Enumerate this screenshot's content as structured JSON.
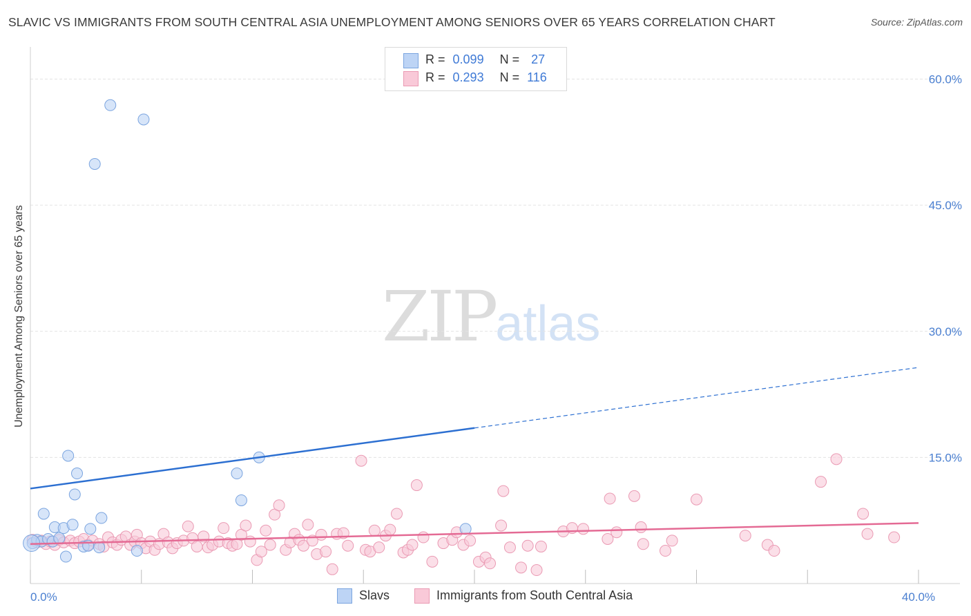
{
  "header": {
    "title": "SLAVIC VS IMMIGRANTS FROM SOUTH CENTRAL ASIA UNEMPLOYMENT AMONG SENIORS OVER 65 YEARS CORRELATION CHART",
    "source": "Source: ZipAtlas.com"
  },
  "watermark": {
    "zip": "ZIP",
    "atlas": "atlas"
  },
  "legend": {
    "r_label": "R =",
    "n_label": "N =",
    "series": [
      {
        "name": "Slavs",
        "r": "0.099",
        "n": "27",
        "fill": "#bdd4f5",
        "stroke": "#7aa4df"
      },
      {
        "name": "Immigrants from South Central Asia",
        "r": "0.293",
        "n": "116",
        "fill": "#f9c9d8",
        "stroke": "#ea9ab3"
      }
    ]
  },
  "colors": {
    "blue_line": "#2c6fd1",
    "pink_line": "#e46a94",
    "grid": "#e3e3e3",
    "axis_text": "#4a7fd0"
  },
  "chart_data": {
    "type": "scatter",
    "title": "SLAVIC VS IMMIGRANTS FROM SOUTH CENTRAL ASIA UNEMPLOYMENT AMONG SENIORS OVER 65 YEARS CORRELATION CHART",
    "xlabel": "",
    "ylabel": "Unemployment Among Seniors over 65 years",
    "xlim": [
      0,
      40
    ],
    "ylim": [
      0,
      63
    ],
    "x_tick_labels": [
      {
        "value": 0,
        "label": "0.0%"
      },
      {
        "value": 40,
        "label": "40.0%"
      }
    ],
    "y_ticks": [
      {
        "value": 15,
        "label": "15.0%"
      },
      {
        "value": 30,
        "label": "30.0%"
      },
      {
        "value": 45,
        "label": "45.0%"
      },
      {
        "value": 60,
        "label": "60.0%"
      }
    ],
    "grid": true,
    "series": [
      {
        "name": "Slavs",
        "r": 0.099,
        "n": 27,
        "trend": {
          "x0": 0,
          "y0": 11.3,
          "x1": 20,
          "y1": 18.5,
          "dash_to_x": 40,
          "dash_to_y": 25.7
        },
        "points": [
          [
            0.1,
            4.8
          ],
          [
            0.3,
            5.2
          ],
          [
            0.5,
            5.0
          ],
          [
            0.8,
            5.3
          ],
          [
            1.0,
            5.0
          ],
          [
            1.1,
            6.7
          ],
          [
            1.3,
            5.4
          ],
          [
            1.5,
            6.6
          ],
          [
            1.6,
            3.2
          ],
          [
            1.7,
            15.2
          ],
          [
            1.9,
            7.0
          ],
          [
            2.1,
            13.1
          ],
          [
            2.0,
            10.6
          ],
          [
            2.4,
            4.4
          ],
          [
            2.7,
            6.5
          ],
          [
            2.6,
            4.5
          ],
          [
            3.1,
            4.3
          ],
          [
            3.2,
            7.8
          ],
          [
            2.9,
            49.9
          ],
          [
            3.6,
            56.9
          ],
          [
            5.1,
            55.2
          ],
          [
            4.8,
            3.9
          ],
          [
            9.3,
            13.1
          ],
          [
            9.5,
            9.9
          ],
          [
            10.3,
            15.0
          ],
          [
            19.6,
            6.5
          ],
          [
            0.6,
            8.3
          ]
        ]
      },
      {
        "name": "Immigrants from South Central Asia",
        "r": 0.293,
        "n": 116,
        "trend": {
          "x0": 0,
          "y0": 4.7,
          "x1": 40,
          "y1": 7.2
        },
        "points": [
          [
            0.1,
            5.2
          ],
          [
            0.3,
            4.9
          ],
          [
            0.5,
            5.1
          ],
          [
            0.7,
            4.7
          ],
          [
            0.9,
            5.0
          ],
          [
            1.1,
            4.6
          ],
          [
            1.3,
            5.2
          ],
          [
            1.5,
            4.9
          ],
          [
            1.8,
            5.1
          ],
          [
            2.0,
            4.8
          ],
          [
            2.2,
            5.0
          ],
          [
            2.4,
            5.3
          ],
          [
            2.6,
            4.6
          ],
          [
            2.8,
            5.1
          ],
          [
            3.1,
            4.7
          ],
          [
            3.3,
            4.4
          ],
          [
            3.5,
            5.5
          ],
          [
            3.7,
            4.9
          ],
          [
            3.9,
            4.6
          ],
          [
            4.1,
            5.2
          ],
          [
            4.3,
            5.6
          ],
          [
            4.5,
            4.6
          ],
          [
            4.7,
            5.0
          ],
          [
            4.8,
            5.8
          ],
          [
            5.0,
            4.8
          ],
          [
            5.2,
            4.2
          ],
          [
            5.4,
            5.0
          ],
          [
            5.6,
            4.0
          ],
          [
            5.8,
            4.7
          ],
          [
            6.0,
            5.9
          ],
          [
            6.2,
            4.9
          ],
          [
            6.4,
            4.2
          ],
          [
            6.6,
            4.8
          ],
          [
            6.9,
            5.1
          ],
          [
            7.1,
            6.8
          ],
          [
            7.3,
            5.4
          ],
          [
            7.5,
            4.4
          ],
          [
            7.8,
            5.6
          ],
          [
            8.0,
            4.3
          ],
          [
            8.2,
            4.6
          ],
          [
            8.5,
            5.0
          ],
          [
            8.7,
            6.6
          ],
          [
            8.9,
            4.8
          ],
          [
            9.1,
            4.5
          ],
          [
            9.3,
            4.7
          ],
          [
            9.5,
            5.8
          ],
          [
            9.7,
            6.9
          ],
          [
            9.9,
            5.0
          ],
          [
            10.2,
            2.8
          ],
          [
            10.4,
            3.8
          ],
          [
            10.6,
            6.3
          ],
          [
            10.8,
            4.6
          ],
          [
            11.0,
            8.2
          ],
          [
            11.2,
            9.3
          ],
          [
            11.5,
            4.0
          ],
          [
            11.7,
            4.9
          ],
          [
            11.9,
            5.9
          ],
          [
            12.1,
            5.2
          ],
          [
            12.3,
            4.5
          ],
          [
            12.5,
            7.0
          ],
          [
            12.7,
            5.1
          ],
          [
            12.9,
            3.5
          ],
          [
            13.1,
            5.8
          ],
          [
            13.3,
            3.8
          ],
          [
            13.6,
            1.7
          ],
          [
            13.8,
            5.9
          ],
          [
            14.1,
            6.0
          ],
          [
            14.3,
            4.5
          ],
          [
            14.9,
            14.6
          ],
          [
            15.1,
            4.0
          ],
          [
            15.3,
            3.8
          ],
          [
            15.5,
            6.3
          ],
          [
            15.7,
            4.3
          ],
          [
            16.0,
            5.7
          ],
          [
            16.2,
            6.4
          ],
          [
            16.5,
            8.3
          ],
          [
            16.8,
            3.7
          ],
          [
            17.0,
            4.0
          ],
          [
            17.2,
            4.6
          ],
          [
            17.4,
            11.7
          ],
          [
            17.7,
            5.5
          ],
          [
            18.1,
            2.6
          ],
          [
            18.6,
            4.8
          ],
          [
            19.0,
            5.2
          ],
          [
            19.2,
            6.1
          ],
          [
            19.5,
            4.6
          ],
          [
            19.8,
            5.1
          ],
          [
            20.2,
            2.6
          ],
          [
            20.5,
            3.1
          ],
          [
            20.7,
            2.4
          ],
          [
            21.2,
            6.9
          ],
          [
            21.3,
            11.0
          ],
          [
            21.6,
            4.3
          ],
          [
            22.1,
            1.9
          ],
          [
            22.4,
            4.5
          ],
          [
            23.0,
            4.4
          ],
          [
            24.0,
            6.2
          ],
          [
            24.4,
            6.6
          ],
          [
            24.9,
            6.5
          ],
          [
            26.0,
            5.3
          ],
          [
            26.1,
            10.1
          ],
          [
            26.4,
            6.1
          ],
          [
            27.2,
            10.4
          ],
          [
            27.5,
            6.7
          ],
          [
            27.6,
            4.7
          ],
          [
            28.6,
            3.9
          ],
          [
            28.9,
            5.1
          ],
          [
            30.0,
            10.0
          ],
          [
            32.2,
            5.7
          ],
          [
            33.2,
            4.6
          ],
          [
            33.5,
            3.9
          ],
          [
            35.6,
            12.1
          ],
          [
            36.3,
            14.8
          ],
          [
            37.5,
            8.3
          ],
          [
            37.7,
            5.9
          ],
          [
            38.9,
            5.5
          ],
          [
            22.8,
            1.6
          ]
        ]
      }
    ]
  }
}
